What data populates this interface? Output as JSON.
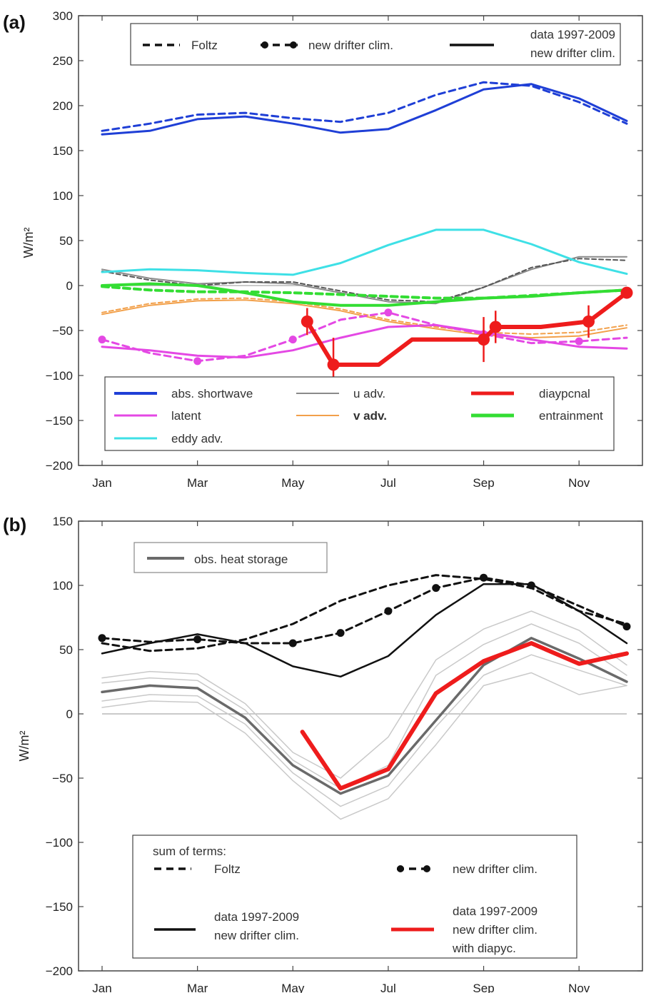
{
  "chart_data": [
    {
      "panel": "(a)",
      "type": "line",
      "ylabel": "W/m²",
      "ylim": [
        -200,
        300
      ],
      "yticks": [
        -200,
        -150,
        -100,
        -50,
        0,
        50,
        100,
        150,
        200,
        250,
        300
      ],
      "ytick_labels": [
        "−200",
        "−150",
        "−100",
        "−50",
        "0",
        "50",
        "100",
        "150",
        "200",
        "250",
        "300"
      ],
      "xlim": [
        1,
        12
      ],
      "xticks": [
        1,
        3,
        5,
        7,
        9,
        11
      ],
      "xtick_labels": [
        "Jan",
        "Mar",
        "May",
        "Jul",
        "Sep",
        "Nov"
      ],
      "x": [
        1,
        2,
        3,
        4,
        5,
        6,
        7,
        8,
        9,
        10,
        11,
        12
      ],
      "zero_line": true,
      "style_legend": [
        {
          "label": "Foltz",
          "style": "dashed"
        },
        {
          "label": "new drifter clim.",
          "style": "dashed-dots"
        },
        {
          "label_lines": [
            "data 1997-2009",
            "new drifter clim."
          ],
          "style": "solid"
        }
      ],
      "color_legend": [
        {
          "label": "abs. shortwave",
          "color": "#1f3fd6",
          "width": 4
        },
        {
          "label": "u adv.",
          "color": "#8a8a8a",
          "width": 2
        },
        {
          "label": "diaypcnal",
          "color": "#ee1c1c",
          "width": 5
        },
        {
          "label": "latent",
          "color": "#e448e4",
          "width": 3
        },
        {
          "label": "v adv.",
          "color": "#f2a04a",
          "width": 2
        },
        {
          "label": "entrainment",
          "color": "#33dd33",
          "width": 5
        },
        {
          "label": "eddy adv.",
          "color": "#3ee0e6",
          "width": 3
        }
      ],
      "series": [
        {
          "key": "sw",
          "variant": "data",
          "color": "#1f3fd6",
          "width": 3,
          "dash": "",
          "values": [
            168,
            172,
            185,
            188,
            180,
            170,
            174,
            195,
            218,
            224,
            208,
            183
          ]
        },
        {
          "key": "sw",
          "variant": "foltz",
          "color": "#1f3fd6",
          "width": 3,
          "dash": "9,6",
          "values": [
            172,
            180,
            190,
            192,
            186,
            182,
            192,
            212,
            226,
            222,
            204,
            180
          ]
        },
        {
          "key": "u",
          "variant": "data",
          "color": "#8a8a8a",
          "width": 2,
          "dash": "",
          "values": [
            18,
            8,
            2,
            4,
            2,
            -8,
            -18,
            -20,
            -2,
            18,
            32,
            32
          ]
        },
        {
          "key": "u",
          "variant": "foltz",
          "color": "#555555",
          "width": 2,
          "dash": "6,4",
          "values": [
            16,
            6,
            0,
            4,
            4,
            -6,
            -16,
            -18,
            -2,
            20,
            30,
            28
          ]
        },
        {
          "key": "eddy",
          "variant": "data",
          "color": "#3ee0e6",
          "width": 3,
          "dash": "",
          "values": [
            15,
            18,
            17,
            14,
            12,
            25,
            45,
            62,
            62,
            46,
            26,
            13
          ]
        },
        {
          "key": "v",
          "variant": "data",
          "color": "#f2a04a",
          "width": 2,
          "dash": "",
          "values": [
            -32,
            -22,
            -17,
            -16,
            -20,
            -28,
            -40,
            -48,
            -55,
            -58,
            -56,
            -47
          ]
        },
        {
          "key": "v",
          "variant": "foltz",
          "color": "#f2a04a",
          "width": 2,
          "dash": "6,4",
          "values": [
            -30,
            -20,
            -15,
            -14,
            -18,
            -26,
            -38,
            -46,
            -52,
            -54,
            -52,
            -44
          ]
        },
        {
          "key": "entr",
          "variant": "data",
          "color": "#33dd33",
          "width": 4,
          "dash": "",
          "values": [
            0,
            2,
            0,
            -8,
            -18,
            -22,
            -22,
            -18,
            -14,
            -12,
            -8,
            -5
          ]
        },
        {
          "key": "entr",
          "variant": "foltz",
          "color": "#33dd33",
          "width": 4,
          "dash": "9,6",
          "values": [
            -1,
            -5,
            -7,
            -7,
            -8,
            -10,
            -12,
            -14,
            -14,
            -11,
            -8,
            -5
          ]
        },
        {
          "key": "latent",
          "variant": "data",
          "color": "#e448e4",
          "width": 3,
          "dash": "",
          "values": [
            -68,
            -72,
            -78,
            -80,
            -72,
            -58,
            -46,
            -44,
            -52,
            -60,
            -68,
            -70
          ]
        },
        {
          "key": "latent",
          "variant": "newdrifter",
          "color": "#e448e4",
          "width": 3,
          "dash": "9,6",
          "markers": true,
          "values": [
            -60,
            -75,
            -84,
            -78,
            -60,
            -38,
            -30,
            -44,
            -54,
            -64,
            -62,
            -58
          ]
        }
      ],
      "diapycnal": {
        "color": "#ee1c1c",
        "x": [
          5.3,
          5.85,
          6.8,
          7.5,
          9.0,
          9.25,
          10.2,
          11.2,
          12.0
        ],
        "y": [
          -40,
          -88,
          -88,
          -60,
          -60,
          -46,
          -46,
          -40,
          -8
        ],
        "points": [
          {
            "x": 5.3,
            "y": -40,
            "err": 15
          },
          {
            "x": 5.85,
            "y": -88,
            "err": 30
          },
          {
            "x": 9.0,
            "y": -60,
            "err": 25
          },
          {
            "x": 9.25,
            "y": -46,
            "err": 18
          },
          {
            "x": 11.2,
            "y": -40,
            "err": 18
          },
          {
            "x": 12.0,
            "y": -8,
            "err": 0
          }
        ]
      }
    },
    {
      "panel": "(b)",
      "type": "line",
      "ylabel": "W/m²",
      "ylim": [
        -200,
        150
      ],
      "yticks": [
        -200,
        -150,
        -100,
        -50,
        0,
        50,
        100,
        150
      ],
      "ytick_labels": [
        "−200",
        "−150",
        "−100",
        "−50",
        "0",
        "50",
        "100",
        "150"
      ],
      "xlim": [
        1,
        12
      ],
      "xticks": [
        1,
        3,
        5,
        7,
        9,
        11
      ],
      "xtick_labels": [
        "Jan",
        "Mar",
        "May",
        "Jul",
        "Sep",
        "Nov"
      ],
      "x": [
        1,
        2,
        3,
        4,
        5,
        6,
        7,
        8,
        9,
        10,
        11,
        12
      ],
      "zero_line": true,
      "top_legend": {
        "label": "obs. heat storage"
      },
      "sum_legend": {
        "title": "sum of terms:",
        "foltz": "Foltz",
        "newdrifter": "new drifter clim.",
        "data_lines": [
          "data 1997-2009",
          "new drifter clim."
        ],
        "diapyc_lines": [
          "data 1997-2009",
          "new drifter clim.",
          "with diapyc."
        ]
      },
      "series": [
        {
          "key": "env_hi",
          "color": "#c9c9c9",
          "width": 1.5,
          "dash": "",
          "values": [
            28,
            33,
            31,
            8,
            -30,
            -50,
            -18,
            42,
            66,
            80,
            65,
            38
          ]
        },
        {
          "key": "env_mid_hi",
          "color": "#c9c9c9",
          "width": 1.5,
          "dash": "",
          "values": [
            24,
            28,
            26,
            3,
            -36,
            -58,
            -40,
            30,
            54,
            70,
            55,
            30
          ]
        },
        {
          "key": "env_mid_lo",
          "color": "#c9c9c9",
          "width": 1.5,
          "dash": "",
          "values": [
            10,
            15,
            14,
            -8,
            -46,
            -72,
            -56,
            -10,
            30,
            46,
            34,
            22
          ]
        },
        {
          "key": "env_lo",
          "color": "#c9c9c9",
          "width": 1.5,
          "dash": "",
          "values": [
            5,
            10,
            9,
            -15,
            -52,
            -82,
            -66,
            -24,
            22,
            32,
            15,
            22
          ]
        },
        {
          "key": "obs",
          "label": "obs. heat storage",
          "color": "#6a6a6a",
          "width": 3.5,
          "dash": "",
          "values": [
            17,
            22,
            20,
            -3,
            -40,
            -62,
            -48,
            -5,
            38,
            59,
            43,
            25
          ]
        },
        {
          "key": "foltz",
          "label": "Foltz",
          "color": "#111111",
          "width": 3,
          "dash": "9,6",
          "values": [
            55,
            49,
            51,
            58,
            70,
            88,
            100,
            108,
            105,
            98,
            80,
            70
          ]
        },
        {
          "key": "newdrifter",
          "label": "new drifter clim.",
          "color": "#111111",
          "width": 3,
          "dash": "9,6",
          "markers": true,
          "values": [
            59,
            56,
            58,
            55,
            55,
            63,
            80,
            98,
            106,
            100,
            84,
            68
          ]
        },
        {
          "key": "data",
          "label": "data 1997-2009 new drifter clim.",
          "color": "#111111",
          "width": 2.5,
          "dash": "",
          "values": [
            47,
            55,
            62,
            55,
            37,
            29,
            45,
            77,
            101,
            101,
            80,
            55
          ]
        }
      ],
      "diapycnal_sum": {
        "color": "#ee1c1c",
        "x": [
          5.2,
          6,
          7,
          8,
          9,
          10,
          11,
          12
        ],
        "y": [
          -14,
          -58,
          -43,
          16,
          41,
          55,
          39,
          47
        ]
      }
    }
  ]
}
